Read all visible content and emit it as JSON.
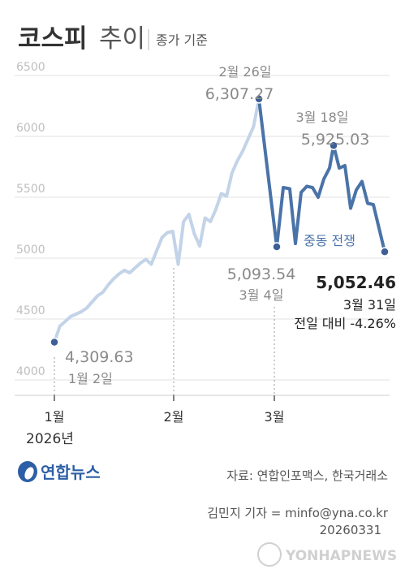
{
  "chart_data": {
    "type": "line",
    "title": "코스피 추이",
    "subtitle": "종가 기준",
    "yticks": [
      4000,
      4500,
      5000,
      5500,
      6000,
      6500
    ],
    "ylim": [
      4000,
      6600
    ],
    "xticks": [
      "1월",
      "2월",
      "3월"
    ],
    "year_label": "2026년",
    "series": [
      {
        "values": [
          4309.63,
          4440,
          4480,
          4520,
          4540,
          4560,
          4590,
          4640,
          4690,
          4720,
          4780,
          4830,
          4870,
          4900,
          4880,
          4920,
          4960,
          4990,
          4950,
          5060,
          5170,
          5210,
          5220,
          4950,
          5300,
          5360,
          5200,
          5100,
          5330,
          5300,
          5400,
          5530,
          5510,
          5700,
          5800,
          5880,
          5980,
          6080,
          6307.27
        ]
      },
      {
        "name": "중동 전쟁",
        "values": [
          6307.27,
          5093.54,
          5580,
          5570,
          5120,
          5540,
          5590,
          5580,
          5500,
          5650,
          5740,
          5925.03,
          5740,
          5760,
          5410,
          5560,
          5630,
          5450,
          5440,
          5052.46
        ]
      }
    ],
    "annotations": {
      "start": {
        "date": "1월 2일",
        "value": "4,309.63"
      },
      "peak": {
        "date": "2월 26일",
        "value": "6,307.27"
      },
      "dip": {
        "date": "3월 4일",
        "value": "5,093.54"
      },
      "mar18": {
        "date": "3월 18일",
        "value": "5,925.03"
      },
      "last": {
        "date": "3월 31일",
        "value": "5,052.46",
        "change": "전일 대비 -4.26%"
      },
      "event": "중동 전쟁"
    }
  },
  "footer": {
    "logo": "연합뉴스",
    "source": "자료: 연합인포맥스, 한국거래소",
    "reporter": "김민지 기자 = minfo@yna.co.kr",
    "date": "20260331",
    "watermark": "YONHAPNEWS"
  },
  "colors": {
    "light_line": "#c3d3e8",
    "dark_line": "#4a73a8",
    "marker": "#3d5f96"
  }
}
